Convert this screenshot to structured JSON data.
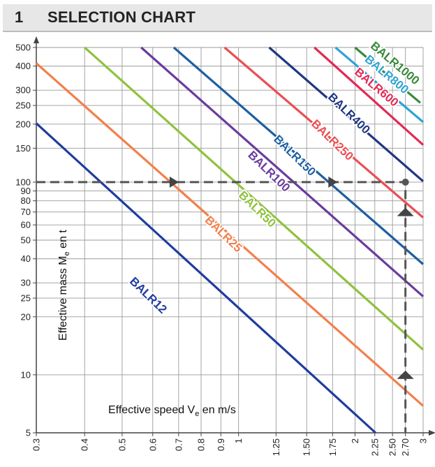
{
  "header": {
    "number": "1",
    "title": "SELECTION CHART"
  },
  "chart_data": {
    "type": "line",
    "title": "SELECTION CHART",
    "xlabel": "Effective speed  V",
    "xlabel_sub": "e",
    "xlabel_unit": " en m/s",
    "ylabel": "Effective mass  M",
    "ylabel_sub": "e",
    "ylabel_unit": " en t",
    "x_scale": "log",
    "y_scale": "log",
    "xlim": [
      0.3,
      3
    ],
    "ylim": [
      5,
      500
    ],
    "x_ticks": [
      0.3,
      0.4,
      0.5,
      0.6,
      0.7,
      0.8,
      0.9,
      1,
      1.25,
      1.5,
      1.75,
      2,
      2.25,
      2.5,
      2.7,
      3
    ],
    "x_tick_labels": [
      "0.3",
      "0.4",
      "0.5",
      "0.6",
      "0.7",
      "0.8",
      "0.9",
      "1",
      "1.25",
      "1.50",
      "1.75",
      "2",
      "2.25",
      "2.50",
      "2.70",
      "3"
    ],
    "y_ticks": [
      5,
      10,
      20,
      25,
      30,
      40,
      50,
      60,
      70,
      80,
      90,
      100,
      150,
      200,
      250,
      300,
      400,
      500
    ],
    "y_tick_labels": [
      "5",
      "10",
      "20",
      "25",
      "30",
      "40",
      "50",
      "60",
      "70",
      "80",
      "90",
      "100",
      "150",
      "200",
      "250",
      "300",
      "400",
      "500"
    ],
    "grid": true,
    "series": [
      {
        "name": "BALR12",
        "color": "#1f3c9e",
        "points": [
          [
            0.3,
            202
          ],
          [
            2.26,
            5
          ]
        ],
        "label_at": [
          0.575,
          25
        ],
        "label_rot": 44
      },
      {
        "name": "BALR25",
        "color": "#f2804c",
        "points": [
          [
            0.3,
            414
          ],
          [
            3,
            6.9
          ]
        ],
        "label_at": [
          0.9,
          52
        ],
        "label_rot": 44
      },
      {
        "name": "BALR50",
        "color": "#8fc23e",
        "points": [
          [
            0.4,
            500
          ],
          [
            3,
            13.5
          ]
        ],
        "label_at": [
          1.1,
          70
        ],
        "label_rot": 44
      },
      {
        "name": "BALR100",
        "color": "#6a3b9e",
        "points": [
          [
            0.56,
            500
          ],
          [
            3,
            25.5
          ]
        ],
        "label_at": [
          1.18,
          110
        ],
        "label_rot": 44
      },
      {
        "name": "BALR150",
        "color": "#1d5fa2",
        "points": [
          [
            0.68,
            500
          ],
          [
            3,
            37.5
          ]
        ],
        "label_at": [
          1.375,
          133
        ],
        "label_rot": 44
      },
      {
        "name": "BALR250",
        "color": "#ea4f52",
        "points": [
          [
            0.92,
            500
          ],
          [
            3,
            65.5
          ]
        ],
        "label_at": [
          1.72,
          160
        ],
        "label_rot": 44
      },
      {
        "name": "BALR400",
        "color": "#1f3780",
        "points": [
          [
            1.2,
            500
          ],
          [
            3,
            101
          ]
        ],
        "label_at": [
          1.9,
          220
        ],
        "label_rot": 44
      },
      {
        "name": "BALR600",
        "color": "#e12b55",
        "points": [
          [
            1.57,
            500
          ],
          [
            3,
            156
          ]
        ],
        "label_at": [
          2.24,
          300
        ],
        "label_rot": 40
      },
      {
        "name": "BALR800",
        "color": "#2ea4d6",
        "points": [
          [
            1.78,
            500
          ],
          [
            3,
            205
          ]
        ],
        "label_at": [
          2.38,
          350
        ],
        "label_rot": 40
      },
      {
        "name": "BALR1000",
        "color": "#3a8a3c",
        "points": [
          [
            2.0,
            500
          ],
          [
            2.95,
            258
          ]
        ],
        "label_at": [
          2.5,
          400
        ],
        "label_rot": 40
      }
    ],
    "annotations": [
      {
        "type": "dashed-guide",
        "path": [
          [
            0.3,
            100
          ],
          [
            2.7,
            100
          ],
          [
            2.7,
            5
          ]
        ],
        "marker_at": [
          2.7,
          100
        ]
      },
      {
        "type": "arrow-right",
        "at": [
          0.68,
          100
        ]
      },
      {
        "type": "arrow-right",
        "at": [
          1.75,
          100
        ]
      },
      {
        "type": "arrow-up",
        "at": [
          2.7,
          70
        ]
      },
      {
        "type": "arrow-up",
        "at": [
          2.7,
          10
        ]
      }
    ]
  }
}
